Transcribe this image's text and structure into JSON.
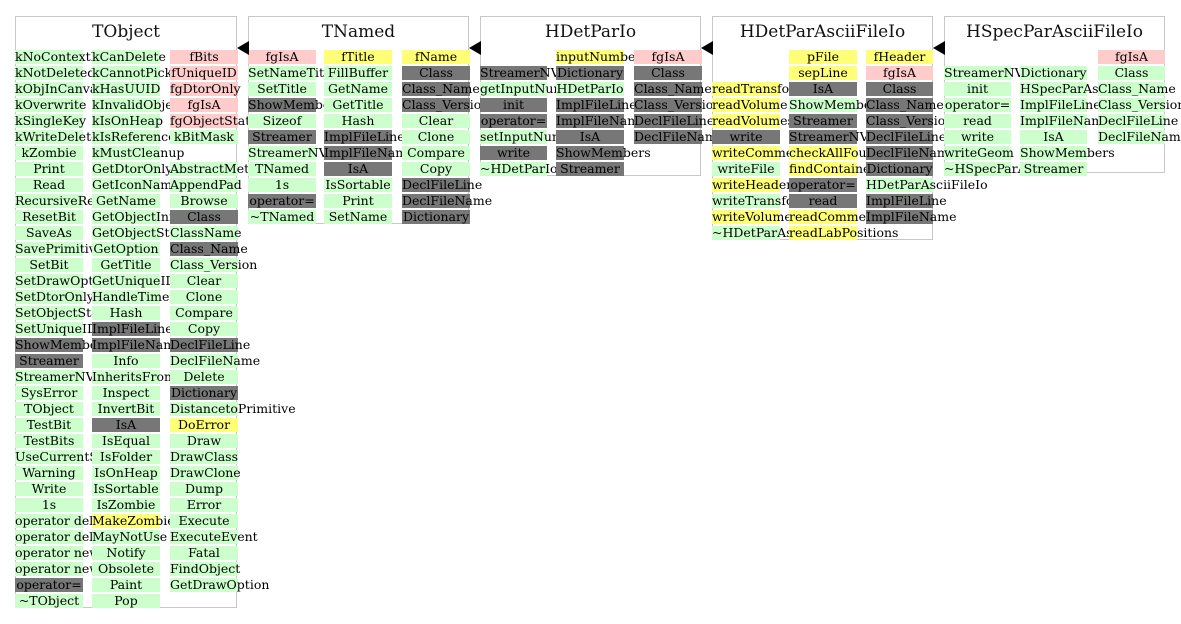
{
  "classes": [
    {
      "title": "TObject",
      "columns": [
        [
          {
            "t": "kNoContextMenu",
            "c": "g"
          },
          {
            "t": "kNotDeleted",
            "c": "g"
          },
          {
            "t": "kObjInCanvas",
            "c": "g"
          },
          {
            "t": "kOverwrite",
            "c": "g"
          },
          {
            "t": "kSingleKey",
            "c": "g"
          },
          {
            "t": "kWriteDelete",
            "c": "g"
          },
          {
            "t": "kZombie",
            "c": "g"
          },
          {
            "t": "Print",
            "c": "g"
          },
          {
            "t": "Read",
            "c": "g"
          },
          {
            "t": "RecursiveRemove",
            "c": "g"
          },
          {
            "t": "ResetBit",
            "c": "g"
          },
          {
            "t": "SaveAs",
            "c": "g"
          },
          {
            "t": "SavePrimitive",
            "c": "g"
          },
          {
            "t": "SetBit",
            "c": "g"
          },
          {
            "t": "SetDrawOption",
            "c": "g"
          },
          {
            "t": "SetDtorOnly",
            "c": "g"
          },
          {
            "t": "SetObjectStat",
            "c": "g"
          },
          {
            "t": "SetUniqueID",
            "c": "g"
          },
          {
            "t": "ShowMembers",
            "c": "d"
          },
          {
            "t": "Streamer",
            "c": "d"
          },
          {
            "t": "StreamerNVirtual",
            "c": "g"
          },
          {
            "t": "SysError",
            "c": "g"
          },
          {
            "t": "TObject",
            "c": "g"
          },
          {
            "t": "TestBit",
            "c": "g"
          },
          {
            "t": "TestBits",
            "c": "g"
          },
          {
            "t": "UseCurrentStyle",
            "c": "g"
          },
          {
            "t": "Warning",
            "c": "g"
          },
          {
            "t": "Write",
            "c": "g"
          },
          {
            "t": "1s",
            "c": "g"
          },
          {
            "t": "operator delete",
            "c": "g"
          },
          {
            "t": "operator delete[]",
            "c": "g"
          },
          {
            "t": "operator new",
            "c": "g"
          },
          {
            "t": "operator new[]",
            "c": "g"
          },
          {
            "t": "operator=",
            "c": "d"
          },
          {
            "t": "~TObject",
            "c": "g"
          }
        ],
        [
          {
            "t": "kCanDelete",
            "c": "g"
          },
          {
            "t": "kCannotPick",
            "c": "g"
          },
          {
            "t": "kHasUUID",
            "c": "g"
          },
          {
            "t": "kInvalidObject",
            "c": "g"
          },
          {
            "t": "kIsOnHeap",
            "c": "g"
          },
          {
            "t": "kIsReferenced",
            "c": "g"
          },
          {
            "t": "kMustCleanup",
            "c": "g"
          },
          {
            "t": "GetDtorOnly",
            "c": "g"
          },
          {
            "t": "GetIconName",
            "c": "g"
          },
          {
            "t": "GetName",
            "c": "g"
          },
          {
            "t": "GetObjectInfo",
            "c": "g"
          },
          {
            "t": "GetObjectStat",
            "c": "g"
          },
          {
            "t": "GetOption",
            "c": "g"
          },
          {
            "t": "GetTitle",
            "c": "g"
          },
          {
            "t": "GetUniqueID",
            "c": "g"
          },
          {
            "t": "HandleTimer",
            "c": "g"
          },
          {
            "t": "Hash",
            "c": "g"
          },
          {
            "t": "ImplFileLine",
            "c": "d"
          },
          {
            "t": "ImplFileName",
            "c": "d"
          },
          {
            "t": "Info",
            "c": "g"
          },
          {
            "t": "InheritsFrom",
            "c": "g"
          },
          {
            "t": "Inspect",
            "c": "g"
          },
          {
            "t": "InvertBit",
            "c": "g"
          },
          {
            "t": "IsA",
            "c": "d"
          },
          {
            "t": "IsEqual",
            "c": "g"
          },
          {
            "t": "IsFolder",
            "c": "g"
          },
          {
            "t": "IsOnHeap",
            "c": "g"
          },
          {
            "t": "IsSortable",
            "c": "g"
          },
          {
            "t": "IsZombie",
            "c": "g"
          },
          {
            "t": "MakeZombie",
            "c": "y"
          },
          {
            "t": "MayNotUse",
            "c": "g"
          },
          {
            "t": "Notify",
            "c": "g"
          },
          {
            "t": "Obsolete",
            "c": "g"
          },
          {
            "t": "Paint",
            "c": "g"
          },
          {
            "t": "Pop",
            "c": "g"
          }
        ],
        [
          {
            "t": "fBits",
            "c": "p"
          },
          {
            "t": "fUniqueID",
            "c": "p"
          },
          {
            "t": "fgDtorOnly",
            "c": "p"
          },
          {
            "t": "fgIsA",
            "c": "p"
          },
          {
            "t": "fgObjectStat",
            "c": "p"
          },
          {
            "t": "kBitMask",
            "c": "g"
          },
          {
            "t": "",
            "c": "w"
          },
          {
            "t": "AbstractMethod",
            "c": "g"
          },
          {
            "t": "AppendPad",
            "c": "g"
          },
          {
            "t": "Browse",
            "c": "g"
          },
          {
            "t": "Class",
            "c": "d"
          },
          {
            "t": "ClassName",
            "c": "g"
          },
          {
            "t": "Class_Name",
            "c": "d"
          },
          {
            "t": "Class_Version",
            "c": "g"
          },
          {
            "t": "Clear",
            "c": "g"
          },
          {
            "t": "Clone",
            "c": "g"
          },
          {
            "t": "Compare",
            "c": "g"
          },
          {
            "t": "Copy",
            "c": "g"
          },
          {
            "t": "DeclFileLine",
            "c": "d"
          },
          {
            "t": "DeclFileName",
            "c": "g"
          },
          {
            "t": "Delete",
            "c": "g"
          },
          {
            "t": "Dictionary",
            "c": "d"
          },
          {
            "t": "DistancetoPrimitive",
            "c": "g"
          },
          {
            "t": "DoError",
            "c": "y"
          },
          {
            "t": "Draw",
            "c": "g"
          },
          {
            "t": "DrawClass",
            "c": "g"
          },
          {
            "t": "DrawClone",
            "c": "g"
          },
          {
            "t": "Dump",
            "c": "g"
          },
          {
            "t": "Error",
            "c": "g"
          },
          {
            "t": "Execute",
            "c": "g"
          },
          {
            "t": "ExecuteEvent",
            "c": "g"
          },
          {
            "t": "Fatal",
            "c": "g"
          },
          {
            "t": "FindObject",
            "c": "g"
          },
          {
            "t": "GetDrawOption",
            "c": "g"
          }
        ]
      ]
    },
    {
      "title": "TNamed",
      "columns": [
        [
          {
            "t": "fgIsA",
            "c": "p"
          },
          {
            "t": "SetNameTitle",
            "c": "g"
          },
          {
            "t": "SetTitle",
            "c": "g"
          },
          {
            "t": "ShowMembers",
            "c": "d"
          },
          {
            "t": "Sizeof",
            "c": "g"
          },
          {
            "t": "Streamer",
            "c": "d"
          },
          {
            "t": "StreamerNVirtual",
            "c": "g"
          },
          {
            "t": "TNamed",
            "c": "g"
          },
          {
            "t": "1s",
            "c": "g"
          },
          {
            "t": "operator=",
            "c": "d"
          },
          {
            "t": "~TNamed",
            "c": "g"
          }
        ],
        [
          {
            "t": "fTitle",
            "c": "y"
          },
          {
            "t": "FillBuffer",
            "c": "g"
          },
          {
            "t": "GetName",
            "c": "g"
          },
          {
            "t": "GetTitle",
            "c": "g"
          },
          {
            "t": "Hash",
            "c": "g"
          },
          {
            "t": "ImplFileLine",
            "c": "d"
          },
          {
            "t": "ImplFileName",
            "c": "d"
          },
          {
            "t": "IsA",
            "c": "d"
          },
          {
            "t": "IsSortable",
            "c": "g"
          },
          {
            "t": "Print",
            "c": "g"
          },
          {
            "t": "SetName",
            "c": "g"
          }
        ],
        [
          {
            "t": "fName",
            "c": "y"
          },
          {
            "t": "Class",
            "c": "d"
          },
          {
            "t": "Class_Name",
            "c": "d"
          },
          {
            "t": "Class_Version",
            "c": "d"
          },
          {
            "t": "Clear",
            "c": "g"
          },
          {
            "t": "Clone",
            "c": "g"
          },
          {
            "t": "Compare",
            "c": "g"
          },
          {
            "t": "Copy",
            "c": "g"
          },
          {
            "t": "DeclFileLine",
            "c": "d"
          },
          {
            "t": "DeclFileName",
            "c": "d"
          },
          {
            "t": "Dictionary",
            "c": "d"
          }
        ]
      ]
    },
    {
      "title": "HDetParIo",
      "columns": [
        [
          {
            "t": "",
            "c": "w"
          },
          {
            "t": "StreamerNVirtual",
            "c": "d"
          },
          {
            "t": "getInputNumber",
            "c": "g"
          },
          {
            "t": "init",
            "c": "d"
          },
          {
            "t": "operator=",
            "c": "d"
          },
          {
            "t": "setInputNumber",
            "c": "g"
          },
          {
            "t": "write",
            "c": "d"
          },
          {
            "t": "~HDetParIo",
            "c": "g"
          }
        ],
        [
          {
            "t": "inputNumber",
            "c": "y"
          },
          {
            "t": "Dictionary",
            "c": "d"
          },
          {
            "t": "HDetParIo",
            "c": "g"
          },
          {
            "t": "ImplFileLine",
            "c": "d"
          },
          {
            "t": "ImplFileName",
            "c": "d"
          },
          {
            "t": "IsA",
            "c": "d"
          },
          {
            "t": "ShowMembers",
            "c": "d"
          },
          {
            "t": "Streamer",
            "c": "d"
          }
        ],
        [
          {
            "t": "fgIsA",
            "c": "p"
          },
          {
            "t": "Class",
            "c": "d"
          },
          {
            "t": "Class_Name",
            "c": "d"
          },
          {
            "t": "Class_Version",
            "c": "d"
          },
          {
            "t": "DeclFileLine",
            "c": "d"
          },
          {
            "t": "DeclFileName",
            "c": "d"
          }
        ]
      ]
    },
    {
      "title": "HDetParAsciiFileIo",
      "columns": [
        [
          {
            "t": "",
            "c": "w"
          },
          {
            "t": "",
            "c": "w"
          },
          {
            "t": "readTransform",
            "c": "y"
          },
          {
            "t": "readVolume",
            "c": "y"
          },
          {
            "t": "readVolumes",
            "c": "y"
          },
          {
            "t": "write",
            "c": "d"
          },
          {
            "t": "writeComment",
            "c": "y"
          },
          {
            "t": "writeFile",
            "c": "g"
          },
          {
            "t": "writeHeader",
            "c": "y"
          },
          {
            "t": "writeTransform",
            "c": "g"
          },
          {
            "t": "writeVolume",
            "c": "y"
          },
          {
            "t": "~HDetParAsciiFileIo",
            "c": "g"
          }
        ],
        [
          {
            "t": "pFile",
            "c": "y"
          },
          {
            "t": "sepLine",
            "c": "y"
          },
          {
            "t": "IsA",
            "c": "d"
          },
          {
            "t": "ShowMembers",
            "c": "g"
          },
          {
            "t": "Streamer",
            "c": "d"
          },
          {
            "t": "StreamerNVirtual",
            "c": "d"
          },
          {
            "t": "checkAllFound",
            "c": "y"
          },
          {
            "t": "findContainer",
            "c": "y"
          },
          {
            "t": "operator=",
            "c": "d"
          },
          {
            "t": "read",
            "c": "d"
          },
          {
            "t": "readComment",
            "c": "y"
          },
          {
            "t": "readLabPositions",
            "c": "y"
          }
        ],
        [
          {
            "t": "fHeader",
            "c": "y"
          },
          {
            "t": "fgIsA",
            "c": "p"
          },
          {
            "t": "Class",
            "c": "d"
          },
          {
            "t": "Class_Name",
            "c": "d"
          },
          {
            "t": "Class_Version",
            "c": "d"
          },
          {
            "t": "DeclFileLine",
            "c": "d"
          },
          {
            "t": "DeclFileName",
            "c": "d"
          },
          {
            "t": "Dictionary",
            "c": "d"
          },
          {
            "t": "HDetParAsciiFileIo",
            "c": "g"
          },
          {
            "t": "ImplFileLine",
            "c": "d"
          },
          {
            "t": "ImplFileName",
            "c": "d"
          }
        ]
      ]
    },
    {
      "title": "HSpecParAsciiFileIo",
      "columns": [
        [
          {
            "t": "",
            "c": "w"
          },
          {
            "t": "StreamerNVirtual",
            "c": "g"
          },
          {
            "t": "init",
            "c": "g"
          },
          {
            "t": "operator=",
            "c": "g"
          },
          {
            "t": "read",
            "c": "g"
          },
          {
            "t": "write",
            "c": "g"
          },
          {
            "t": "writeGeom",
            "c": "g"
          },
          {
            "t": "~HSpecParAsciiFileIo",
            "c": "g"
          }
        ],
        [
          {
            "t": "",
            "c": "w"
          },
          {
            "t": "Dictionary",
            "c": "g"
          },
          {
            "t": "HSpecParAsciiFileIo",
            "c": "g"
          },
          {
            "t": "ImplFileLine",
            "c": "g"
          },
          {
            "t": "ImplFileName",
            "c": "g"
          },
          {
            "t": "IsA",
            "c": "g"
          },
          {
            "t": "ShowMembers",
            "c": "g"
          },
          {
            "t": "Streamer",
            "c": "g"
          }
        ],
        [
          {
            "t": "fgIsA",
            "c": "p"
          },
          {
            "t": "Class",
            "c": "g"
          },
          {
            "t": "Class_Name",
            "c": "g"
          },
          {
            "t": "Class_Version",
            "c": "g"
          },
          {
            "t": "DeclFileLine",
            "c": "g"
          },
          {
            "t": "DeclFileName",
            "c": "g"
          }
        ]
      ]
    }
  ]
}
